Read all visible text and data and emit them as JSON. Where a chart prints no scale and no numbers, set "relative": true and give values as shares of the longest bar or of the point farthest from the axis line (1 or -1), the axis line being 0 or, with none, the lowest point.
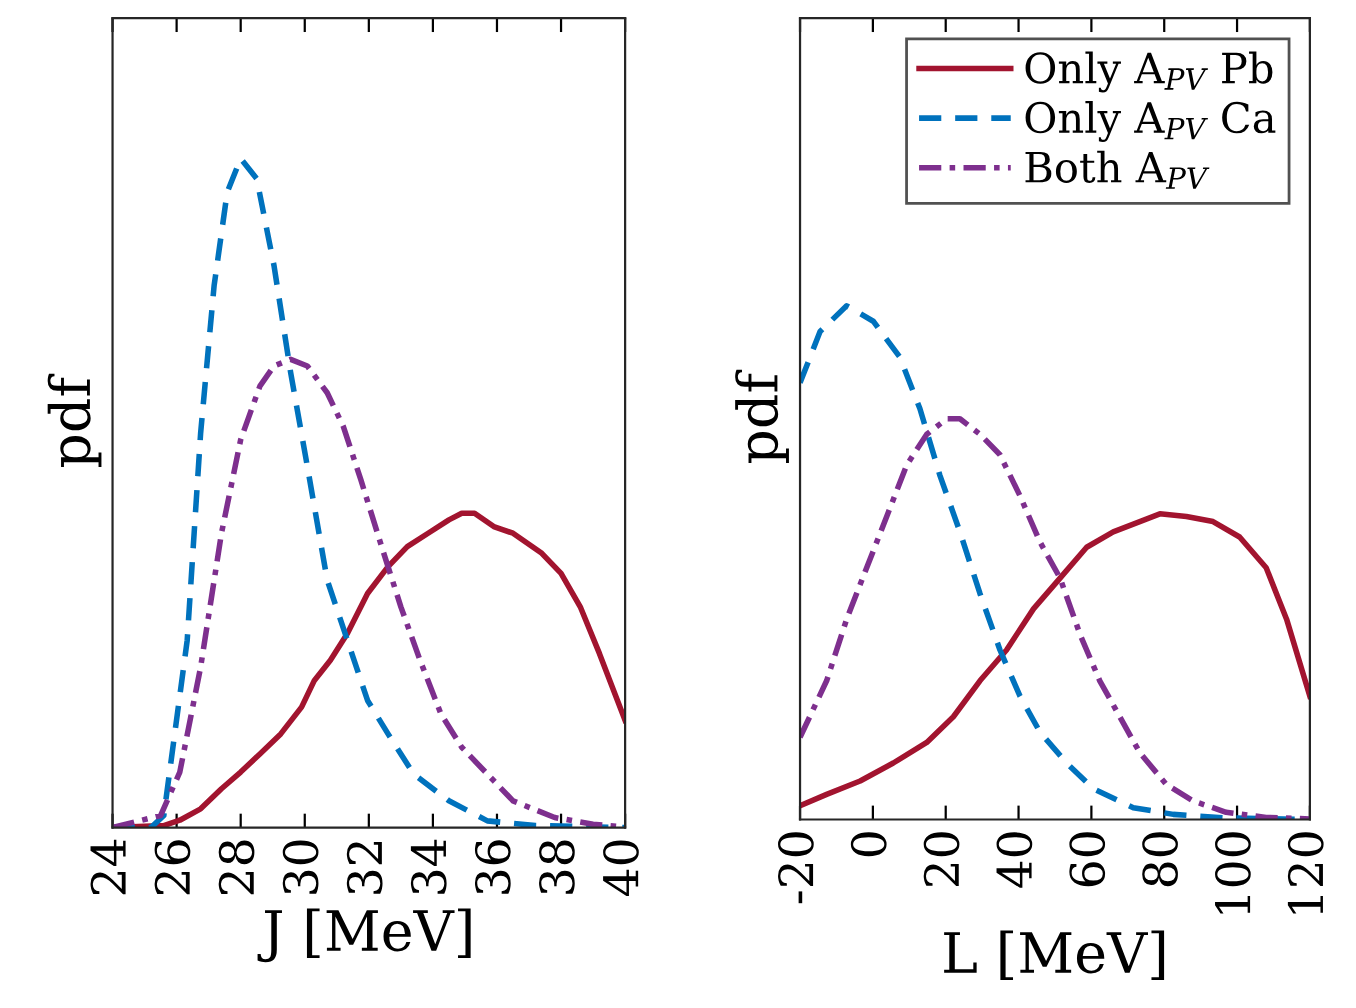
{
  "chart_data": [
    {
      "type": "line",
      "relative": true,
      "xlabel": "J [MeV]",
      "ylabel": "pdf",
      "xlim": [
        24,
        40
      ],
      "xticks": [
        24,
        26,
        28,
        30,
        32,
        34,
        36,
        38,
        40
      ],
      "legend": false,
      "grid": false,
      "marker": "none",
      "series": [
        {
          "color": "#a2142f",
          "line_style": "solid",
          "x": [
            24,
            25.6,
            26.1,
            26.75,
            27.4,
            28,
            28.6,
            29.25,
            29.9,
            30.3,
            30.8,
            31.33,
            31.96,
            32.6,
            33.2,
            33.85,
            34.5,
            34.9,
            35.3,
            35.9,
            36.5,
            37.4,
            38,
            38.6,
            39.2,
            40
          ],
          "values": [
            0,
            0.003,
            0.011,
            0.028,
            0.058,
            0.083,
            0.11,
            0.14,
            0.18,
            0.22,
            0.25,
            0.29,
            0.35,
            0.39,
            0.42,
            0.44,
            0.46,
            0.47,
            0.47,
            0.45,
            0.44,
            0.41,
            0.38,
            0.33,
            0.26,
            0.16
          ]
        },
        {
          "color": "#0072bd",
          "line_style": "dashed",
          "x": [
            24,
            25.2,
            25.6,
            26.33,
            26.75,
            27.17,
            27.58,
            28,
            28.5,
            29.04,
            29.56,
            30.08,
            30.7,
            31.33,
            31.96,
            32.6,
            33.4,
            34.5,
            35.7,
            37.2,
            40
          ],
          "values": [
            0,
            0,
            0.018,
            0.28,
            0.59,
            0.81,
            0.95,
            1,
            0.97,
            0.84,
            0.68,
            0.54,
            0.37,
            0.28,
            0.19,
            0.14,
            0.08,
            0.04,
            0.01,
            0.003,
            0
          ]
        },
        {
          "color": "#7e2f8e",
          "line_style": "dashdot",
          "x": [
            24,
            25.5,
            26.1,
            26.75,
            27.4,
            28,
            28.6,
            29.04,
            29.56,
            30.08,
            30.7,
            31.2,
            31.75,
            32.4,
            33,
            33.6,
            34.25,
            34.9,
            35.7,
            36.5,
            37.8,
            39,
            40
          ],
          "values": [
            0,
            0.018,
            0.083,
            0.24,
            0.44,
            0.58,
            0.66,
            0.69,
            0.7,
            0.69,
            0.65,
            0.6,
            0.52,
            0.42,
            0.33,
            0.25,
            0.17,
            0.12,
            0.08,
            0.04,
            0.015,
            0.005,
            0.001
          ]
        }
      ]
    },
    {
      "type": "line",
      "relative": true,
      "xlabel": "L [MeV]",
      "ylabel": "pdf",
      "xlim": [
        -20,
        120
      ],
      "xticks": [
        -20,
        0,
        20,
        40,
        60,
        80,
        100,
        120
      ],
      "legend": "top right",
      "grid": false,
      "marker": "none",
      "series": [
        {
          "name": "Only A$_{PV}$ Pb",
          "color": "#a2142f",
          "line_style": "solid",
          "x": [
            -20,
            -12.7,
            -3.5,
            5.6,
            14.8,
            22.1,
            29.4,
            36.7,
            44.1,
            51.4,
            58.7,
            66,
            73.3,
            78.8,
            86.1,
            93.4,
            100.7,
            108,
            113.6,
            120
          ],
          "values": [
            0.027,
            0.049,
            0.075,
            0.11,
            0.15,
            0.2,
            0.27,
            0.33,
            0.41,
            0.47,
            0.53,
            0.56,
            0.58,
            0.595,
            0.59,
            0.58,
            0.55,
            0.49,
            0.39,
            0.24
          ]
        },
        {
          "name": "Only A$_{PV}$ Ca",
          "color": "#0072bd",
          "line_style": "dashed",
          "x": [
            -20,
            -14.5,
            -7.2,
            0.1,
            7.4,
            12.9,
            18.4,
            23.9,
            29.4,
            34.9,
            40.4,
            45.9,
            53.2,
            60.5,
            71.5,
            82.5,
            97,
            120
          ],
          "values": [
            0.85,
            0.95,
            1,
            0.97,
            0.9,
            0.8,
            0.67,
            0.56,
            0.44,
            0.33,
            0.24,
            0.17,
            0.11,
            0.06,
            0.023,
            0.01,
            0.003,
            0
          ]
        },
        {
          "name": "Both A$_{PV}$",
          "color": "#7e2f8e",
          "line_style": "dashdot",
          "x": [
            -20,
            -12.7,
            -7.2,
            -1.7,
            3.8,
            9.3,
            14.8,
            20.3,
            23.9,
            29.4,
            34.9,
            40.4,
            45.9,
            51.4,
            56.9,
            62.3,
            67.8,
            73.3,
            80.6,
            88,
            97,
            108,
            120
          ],
          "values": [
            0.16,
            0.27,
            0.39,
            0.49,
            0.59,
            0.69,
            0.75,
            0.78,
            0.78,
            0.75,
            0.71,
            0.63,
            0.54,
            0.47,
            0.36,
            0.27,
            0.2,
            0.13,
            0.068,
            0.036,
            0.014,
            0.004,
            0.001
          ]
        }
      ]
    }
  ]
}
